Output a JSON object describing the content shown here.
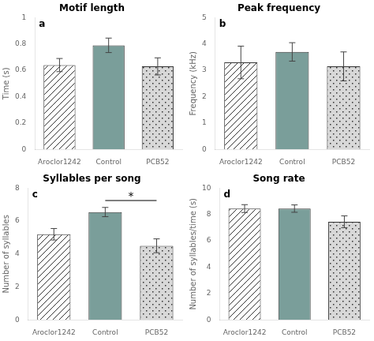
{
  "chart_data": [
    {
      "type": "bar",
      "title": "Motif length",
      "ylabel": "Time (s)",
      "categories": [
        "Aroclor1242",
        "Control",
        "PCB52"
      ],
      "values": [
        0.64,
        0.79,
        0.63
      ],
      "errors": [
        0.05,
        0.055,
        0.065
      ],
      "colors": [
        "white",
        "#7a9e9a",
        "#d8d8d8"
      ],
      "ylim": [
        0,
        1
      ],
      "yticks": [
        0,
        0.2,
        0.4,
        0.6,
        0.8,
        1
      ],
      "grid": false,
      "annotations": [
        {
          "text": "a"
        }
      ]
    },
    {
      "type": "bar",
      "title": "Peak frequency",
      "ylabel": "Frequency (kHz)",
      "categories": [
        "Aroclor1242",
        "Control",
        "PCB52"
      ],
      "values": [
        3.3,
        3.7,
        3.15
      ],
      "errors": [
        0.62,
        0.35,
        0.55
      ],
      "colors": [
        "white",
        "#7a9e9a",
        "#d8d8d8"
      ],
      "ylim": [
        0,
        5
      ],
      "yticks": [
        0,
        1,
        2,
        3,
        4,
        5
      ],
      "grid": false,
      "annotations": [
        {
          "text": "b"
        }
      ]
    },
    {
      "type": "bar",
      "title": "Syllables per song",
      "ylabel": "Number of syllables",
      "categories": [
        "Aroclor1242",
        "Control",
        "PCB52"
      ],
      "values": [
        5.2,
        6.55,
        4.5
      ],
      "errors": [
        0.35,
        0.28,
        0.42
      ],
      "colors": [
        "white",
        "#7a9e9a",
        "#d8d8d8"
      ],
      "ylim": [
        0,
        8
      ],
      "yticks": [
        0,
        2,
        4,
        6,
        8
      ],
      "grid": false,
      "annotations": [
        {
          "text": "c"
        },
        {
          "text": "*",
          "from": "Control",
          "to": "PCB52",
          "y": 7.25
        }
      ]
    },
    {
      "type": "bar",
      "title": "Song rate",
      "ylabel": "Number of syllables/time (s)",
      "categories": [
        "Aroclor1242",
        "Control",
        "PCB52"
      ],
      "values": [
        8.45,
        8.45,
        7.45
      ],
      "errors": [
        0.3,
        0.28,
        0.45
      ],
      "colors": [
        "white",
        "#7a9e9a",
        "#d8d8d8"
      ],
      "ylim": [
        0,
        10
      ],
      "yticks": [
        0,
        2,
        4,
        6,
        8,
        10
      ],
      "grid": false,
      "annotations": [
        {
          "text": "d"
        }
      ]
    }
  ]
}
